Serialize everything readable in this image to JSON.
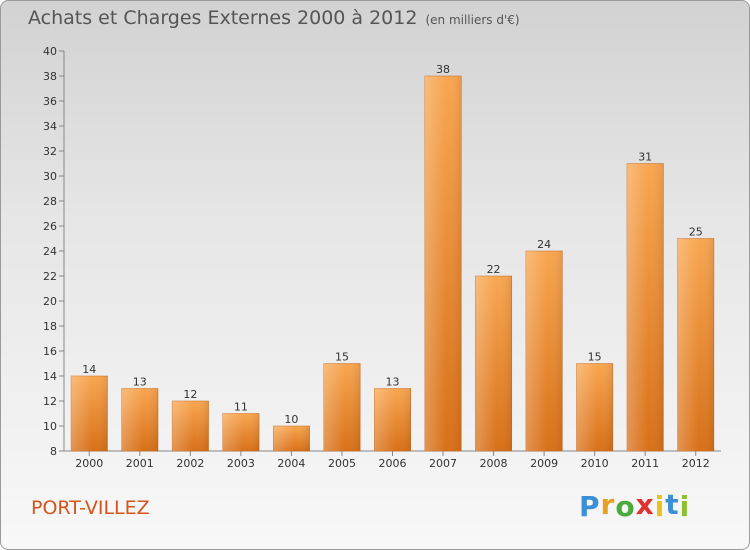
{
  "page": {
    "title": "Achats et Charges Externes 2000 à 2012",
    "unit": "(en milliers d'€)",
    "commune": "PORT-VILLEZ",
    "logo": {
      "letters": [
        "P",
        "r",
        "o",
        "x",
        "i",
        "t",
        "i"
      ],
      "colors": [
        "#3a8fd6",
        "#e8a020",
        "#4caa3a",
        "#e03030",
        "#e8c020",
        "#3a8fd6",
        "#8cc030"
      ]
    }
  },
  "chart_data": {
    "type": "bar",
    "title": "Achats et Charges Externes 2000 à 2012",
    "subtitle": "(en milliers d'€)",
    "categories": [
      "2000",
      "2001",
      "2002",
      "2003",
      "2004",
      "2005",
      "2006",
      "2007",
      "2008",
      "2009",
      "2010",
      "2011",
      "2012"
    ],
    "values": [
      14,
      13,
      12,
      11,
      10,
      15,
      13,
      38,
      22,
      24,
      15,
      31,
      25
    ],
    "ylim": [
      8,
      40
    ],
    "yticks": [
      8,
      10,
      12,
      14,
      16,
      18,
      20,
      22,
      24,
      26,
      28,
      30,
      32,
      34,
      36,
      38,
      40
    ],
    "grid": false,
    "legend": "none",
    "bar_color": "#f0902e"
  }
}
